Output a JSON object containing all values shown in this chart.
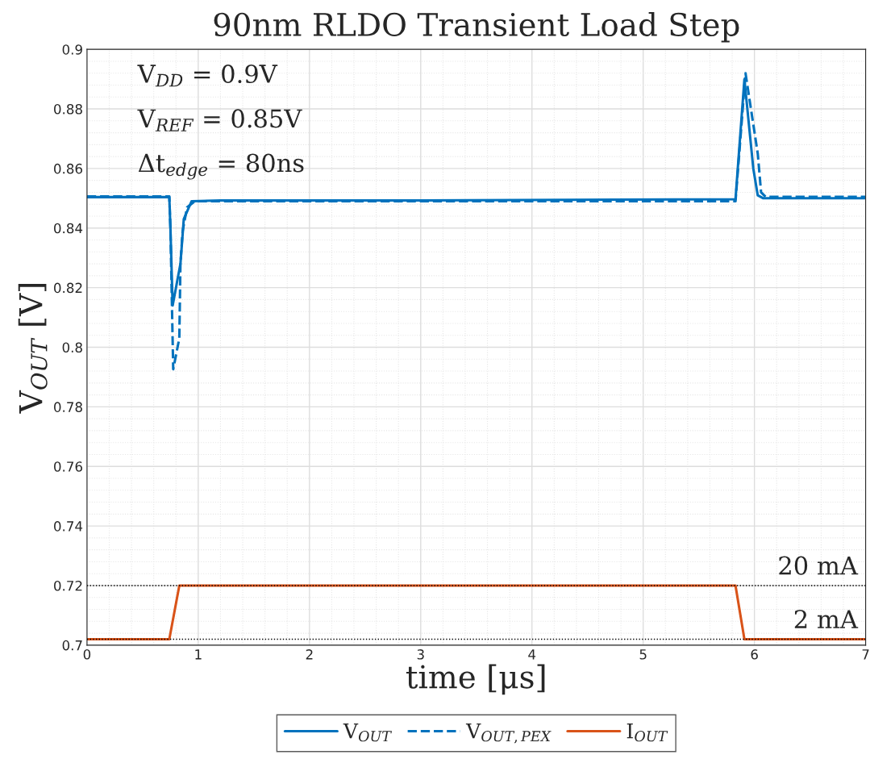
{
  "chart_data": {
    "type": "line",
    "title": "90nm RLDO Transient Load Step",
    "xlabel": "time [μs]",
    "ylabel": "V$_{OUT}$ [V]",
    "xlim": [
      0,
      7
    ],
    "ylim": [
      0.7,
      0.9
    ],
    "xticks": [
      0,
      1,
      2,
      3,
      4,
      5,
      6,
      7
    ],
    "yticks": [
      0.7,
      0.72,
      0.74,
      0.76,
      0.78,
      0.8,
      0.82,
      0.84,
      0.86,
      0.88,
      0.9
    ],
    "grid": true,
    "legend": "bottom",
    "line_style": "solid",
    "marker": "none",
    "annotations": [
      "V$_{DD}$ = 0.9V",
      "V$_{REF}$ = 0.85V",
      "Δt$_{edge}$ = 80ns"
    ],
    "ref_lines": [
      {
        "axis": "y",
        "value": 0.72,
        "label": "20 mA",
        "color": "#000000",
        "line_style": "dotted"
      },
      {
        "axis": "y",
        "value": 0.702,
        "label": "2 mA",
        "color": "#000000",
        "line_style": "dotted"
      }
    ],
    "series": [
      {
        "name": "V$_{OUT}$",
        "color": "#0072bd",
        "x": [
          0,
          0.74,
          0.75,
          0.77,
          0.84,
          0.87,
          0.94,
          1.2,
          3.0,
          5.83,
          5.91,
          5.99,
          6.03,
          6.08,
          6.5,
          7
        ],
        "values": [
          0.8504,
          0.8504,
          0.84,
          0.814,
          0.828,
          0.843,
          0.849,
          0.8493,
          0.8493,
          0.8497,
          0.8899,
          0.86,
          0.851,
          0.85,
          0.85,
          0.85
        ]
      },
      {
        "name": "V$_{OUT,PEX}$",
        "color": "#0072bd",
        "line_style": "dashed",
        "x": [
          0,
          0.74,
          0.75,
          0.775,
          0.83,
          0.84,
          0.86,
          0.9,
          0.97,
          1.2,
          3.0,
          5.83,
          5.92,
          6.03,
          6.06,
          6.1,
          6.5,
          7
        ],
        "values": [
          0.8506,
          0.8506,
          0.84,
          0.7926,
          0.803,
          0.828,
          0.839,
          0.847,
          0.849,
          0.849,
          0.849,
          0.849,
          0.892,
          0.865,
          0.852,
          0.8505,
          0.8505,
          0.8505
        ]
      },
      {
        "name": "I$_{OUT}$",
        "color": "#d95319",
        "x": [
          0,
          0.74,
          0.83,
          5.83,
          5.91,
          7
        ],
        "values": [
          0.702,
          0.702,
          0.72,
          0.72,
          0.702,
          0.702
        ]
      }
    ]
  }
}
